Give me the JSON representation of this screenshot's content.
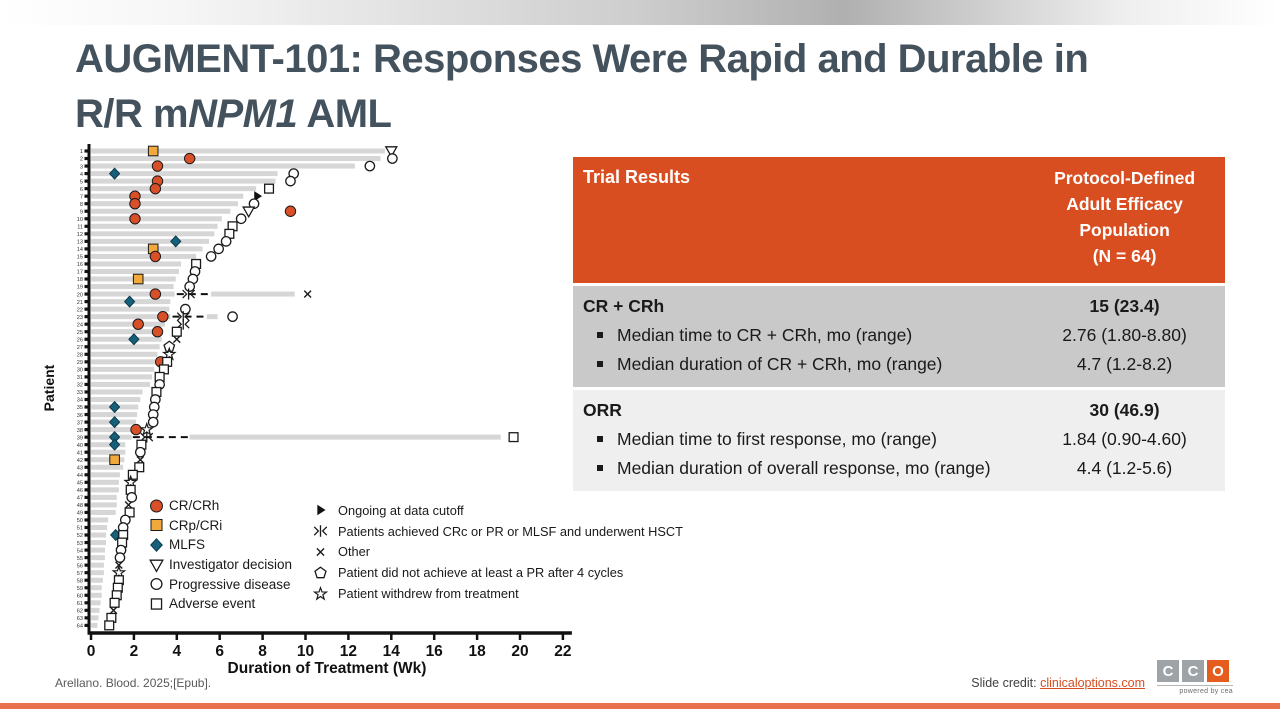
{
  "slide": {
    "title": {
      "line1": "AUGMENT-101: Responses Were Rapid and Durable in",
      "line2_prefix": "R/R m",
      "line2_italic": "NPM1",
      "line2_suffix": " AML"
    },
    "footer": {
      "citation": "Arellano. Blood. 2025;[Epub].",
      "credit_label": "Slide credit: ",
      "credit_link": "clinicaloptions.com",
      "logo_letters": [
        "C",
        "C",
        "O"
      ],
      "logo_tagline": "powered by cea"
    },
    "colors": {
      "title_text": "#44525E",
      "table_header_bg": "#D84E20",
      "table_row1_bg": "#C9C9C9",
      "table_row2_bg": "#EFEFEF",
      "link": "#D84E20",
      "bottom_bar": "#E8724E",
      "logo_gray": "#9EA3A8",
      "logo_orange": "#E55C1F"
    }
  },
  "table": {
    "header": {
      "col1": "Trial Results",
      "col2_lines": [
        "Protocol-Defined",
        "Adult Efficacy",
        "Population",
        "(N = 64)"
      ]
    },
    "rows": [
      {
        "title": "CR + CRh",
        "bullets": [
          "Median time to CR + CRh, mo (range)",
          "Median duration of CR + CRh, mo (range)"
        ],
        "value_bold": "15 (23.4)",
        "values": [
          "2.76 (1.80-8.80)",
          "4.7 (1.2-8.2)"
        ]
      },
      {
        "title": "ORR",
        "bullets": [
          "Median time to first response, mo (range)",
          "Median duration of overall response, mo (range)"
        ],
        "value_bold": "30 (46.9)",
        "values": [
          "1.84 (0.90-4.60)",
          "4.4 (1.2-5.6)"
        ]
      }
    ]
  },
  "legend": {
    "left": [
      {
        "sym": "crc",
        "label": "CR/CRh"
      },
      {
        "sym": "cri",
        "label": "CRp/CRi"
      },
      {
        "sym": "mlfs",
        "label": "MLFS"
      },
      {
        "sym": "inv",
        "label": "Investigator decision"
      },
      {
        "sym": "pd",
        "label": "Progressive disease"
      },
      {
        "sym": "ae",
        "label": "Adverse event"
      }
    ],
    "right": [
      {
        "sym": "ong",
        "label": "Ongoing at data cutoff"
      },
      {
        "sym": "hsct",
        "label": "Patients achieved CRc or PR or MLSF and underwent HSCT"
      },
      {
        "sym": "oth",
        "label": "Other"
      },
      {
        "sym": "pent",
        "label": "Patient did not achieve at least a PR after 4 cycles"
      },
      {
        "sym": "wd",
        "label": "Patient withdrew from treatment"
      }
    ]
  },
  "chart_data": {
    "type": "bar",
    "subtype": "swimmer-plot",
    "title": "",
    "xlabel": "Duration of Treatment (Wk)",
    "ylabel": "Patient",
    "xlim": [
      0,
      22
    ],
    "x_ticks": [
      0,
      2,
      4,
      6,
      8,
      10,
      12,
      14,
      16,
      18,
      20,
      22
    ],
    "grid": false,
    "colors": {
      "bar": "#D6D6D6",
      "crc": "#D94F27",
      "cri": "#F2A93B",
      "mlfs": "#16607A",
      "stroke": "#1a1a1a"
    },
    "marker_types": {
      "crc": "CR/CRh",
      "cri": "CRp/CRi",
      "mlfs": "MLFS",
      "inv": "Investigator decision",
      "pd": "Progressive disease",
      "ae": "Adverse event",
      "ong": "Ongoing at data cutoff",
      "hsct": "HSCT",
      "oth": "Other",
      "pent": "No PR after 4 cycles",
      "wd": "Withdrew"
    },
    "patients": [
      {
        "id": 1,
        "wk": 13.7,
        "m": [
          [
            "cri",
            2.9
          ],
          [
            "inv",
            14.0
          ]
        ]
      },
      {
        "id": 2,
        "wk": 13.5,
        "m": [
          [
            "crc",
            4.6
          ],
          [
            "pd",
            14.05
          ]
        ]
      },
      {
        "id": 3,
        "wk": 12.3,
        "m": [
          [
            "crc",
            3.1
          ],
          [
            "pd",
            13.0
          ]
        ]
      },
      {
        "id": 4,
        "wk": 8.7,
        "m": [
          [
            "mlfs",
            1.1
          ],
          [
            "pd",
            9.45
          ]
        ]
      },
      {
        "id": 5,
        "wk": 8.6,
        "m": [
          [
            "crc",
            3.1
          ],
          [
            "pd",
            9.3
          ]
        ]
      },
      {
        "id": 6,
        "wk": 7.7,
        "m": [
          [
            "crc",
            3.0
          ],
          [
            "ae",
            8.3
          ]
        ]
      },
      {
        "id": 7,
        "wk": 7.1,
        "m": [
          [
            "crc",
            2.05
          ],
          [
            "ong",
            7.75
          ]
        ]
      },
      {
        "id": 8,
        "wk": 6.85,
        "m": [
          [
            "crc",
            2.05
          ],
          [
            "pd",
            7.6
          ]
        ]
      },
      {
        "id": 9,
        "wk": 6.5,
        "m": [
          [
            "inv",
            7.35
          ],
          [
            "crc",
            9.3
          ]
        ]
      },
      {
        "id": 10,
        "wk": 6.1,
        "m": [
          [
            "crc",
            2.05
          ],
          [
            "pd",
            7.0
          ]
        ]
      },
      {
        "id": 11,
        "wk": 5.9,
        "m": [
          [
            "ae",
            6.6
          ]
        ]
      },
      {
        "id": 12,
        "wk": 5.75,
        "m": [
          [
            "ae",
            6.45
          ]
        ]
      },
      {
        "id": 13,
        "wk": 5.5,
        "m": [
          [
            "mlfs",
            3.95
          ],
          [
            "pd",
            6.3
          ]
        ]
      },
      {
        "id": 14,
        "wk": 5.2,
        "m": [
          [
            "cri",
            2.9
          ],
          [
            "pd",
            5.95
          ]
        ]
      },
      {
        "id": 15,
        "wk": 4.9,
        "m": [
          [
            "crc",
            3.0
          ],
          [
            "pd",
            5.6
          ]
        ]
      },
      {
        "id": 16,
        "wk": 4.2,
        "m": [
          [
            "ae",
            4.9
          ]
        ]
      },
      {
        "id": 17,
        "wk": 4.1,
        "m": [
          [
            "pd",
            4.85
          ]
        ]
      },
      {
        "id": 18,
        "wk": 3.95,
        "m": [
          [
            "cri",
            2.2
          ],
          [
            "pd",
            4.75
          ]
        ]
      },
      {
        "id": 19,
        "wk": 3.85,
        "m": [
          [
            "pd",
            4.6
          ]
        ]
      },
      {
        "id": 20,
        "wk": 3.9,
        "m": [
          [
            "crc",
            3.0
          ],
          [
            "hsct",
            4.55
          ],
          [
            "oth",
            10.1
          ]
        ],
        "dash": [
          4.0,
          5.6
        ],
        "bar2": [
          5.6,
          9.5
        ]
      },
      {
        "id": 21,
        "wk": 3.7,
        "m": [
          [
            "mlfs",
            1.8
          ]
        ]
      },
      {
        "id": 22,
        "wk": 3.65,
        "m": [
          [
            "pd",
            4.4
          ]
        ]
      },
      {
        "id": 23,
        "wk": 3.7,
        "m": [
          [
            "crc",
            3.35
          ],
          [
            "hsct",
            4.3
          ],
          [
            "pd",
            6.6
          ]
        ],
        "dash": [
          3.8,
          5.35
        ],
        "bar2": [
          5.4,
          5.9
        ]
      },
      {
        "id": 24,
        "wk": 3.45,
        "m": [
          [
            "crc",
            2.2
          ],
          [
            "hsct",
            4.3
          ]
        ]
      },
      {
        "id": 25,
        "wk": 3.35,
        "m": [
          [
            "crc",
            3.1
          ],
          [
            "ae",
            4.0
          ]
        ]
      },
      {
        "id": 26,
        "wk": 3.3,
        "m": [
          [
            "mlfs",
            2.0
          ],
          [
            "oth",
            4.0
          ]
        ]
      },
      {
        "id": 27,
        "wk": 3.2,
        "m": [
          [
            "pent",
            3.65
          ]
        ]
      },
      {
        "id": 28,
        "wk": 3.1,
        "m": [
          [
            "wd",
            3.65
          ]
        ]
      },
      {
        "id": 29,
        "wk": 3.0,
        "m": [
          [
            "crc",
            3.25
          ],
          [
            "ae",
            3.55
          ]
        ]
      },
      {
        "id": 30,
        "wk": 2.95,
        "m": [
          [
            "ae",
            3.4
          ]
        ]
      },
      {
        "id": 31,
        "wk": 2.85,
        "m": [
          [
            "ae",
            3.2
          ]
        ]
      },
      {
        "id": 32,
        "wk": 2.75,
        "m": [
          [
            "pd",
            3.2
          ]
        ]
      },
      {
        "id": 33,
        "wk": 2.4,
        "m": [
          [
            "ae",
            3.05
          ]
        ]
      },
      {
        "id": 34,
        "wk": 2.3,
        "m": [
          [
            "pd",
            3.0
          ]
        ]
      },
      {
        "id": 35,
        "wk": 2.2,
        "m": [
          [
            "mlfs",
            1.1
          ],
          [
            "pd",
            2.95
          ]
        ]
      },
      {
        "id": 36,
        "wk": 2.15,
        "m": [
          [
            "pd",
            2.9
          ]
        ]
      },
      {
        "id": 37,
        "wk": 2.1,
        "m": [
          [
            "mlfs",
            1.1
          ],
          [
            "pd",
            2.9
          ]
        ]
      },
      {
        "id": 38,
        "wk": 2.0,
        "m": [
          [
            "crc",
            2.1
          ],
          [
            "wd",
            2.6
          ]
        ]
      },
      {
        "id": 39,
        "wk": 1.9,
        "m": [
          [
            "mlfs",
            1.1
          ],
          [
            "hsct",
            2.6
          ],
          [
            "ae",
            19.7
          ]
        ],
        "dash": [
          1.95,
          4.55
        ],
        "bar2": [
          4.6,
          19.1
        ]
      },
      {
        "id": 40,
        "wk": 1.6,
        "m": [
          [
            "mlfs",
            1.1
          ],
          [
            "ae",
            2.35
          ]
        ]
      },
      {
        "id": 41,
        "wk": 1.6,
        "m": [
          [
            "pd",
            2.3
          ]
        ]
      },
      {
        "id": 42,
        "wk": 1.55,
        "m": [
          [
            "cri",
            1.1
          ],
          [
            "oth",
            2.3
          ]
        ]
      },
      {
        "id": 43,
        "wk": 1.5,
        "m": [
          [
            "ae",
            2.25
          ]
        ]
      },
      {
        "id": 44,
        "wk": 1.35,
        "m": [
          [
            "ae",
            1.95
          ]
        ]
      },
      {
        "id": 45,
        "wk": 1.3,
        "m": [
          [
            "wd",
            1.85
          ]
        ]
      },
      {
        "id": 46,
        "wk": 1.3,
        "m": [
          [
            "ae",
            1.85
          ]
        ]
      },
      {
        "id": 47,
        "wk": 1.2,
        "m": [
          [
            "pd",
            1.9
          ]
        ]
      },
      {
        "id": 48,
        "wk": 1.2,
        "m": [
          [
            "oth",
            1.75
          ]
        ]
      },
      {
        "id": 49,
        "wk": 1.15,
        "m": [
          [
            "ae",
            1.8
          ]
        ]
      },
      {
        "id": 50,
        "wk": 0.8,
        "m": [
          [
            "pd",
            1.6
          ]
        ]
      },
      {
        "id": 51,
        "wk": 0.75,
        "m": [
          [
            "pd",
            1.5
          ]
        ]
      },
      {
        "id": 52,
        "wk": 0.7,
        "m": [
          [
            "mlfs",
            1.15
          ],
          [
            "ae",
            1.5
          ]
        ]
      },
      {
        "id": 53,
        "wk": 0.7,
        "m": [
          [
            "ae",
            1.45
          ]
        ]
      },
      {
        "id": 54,
        "wk": 0.65,
        "m": [
          [
            "pd",
            1.4
          ]
        ]
      },
      {
        "id": 55,
        "wk": 0.65,
        "m": [
          [
            "pd",
            1.35
          ]
        ]
      },
      {
        "id": 56,
        "wk": 0.6,
        "m": [
          [
            "oth",
            1.3
          ]
        ]
      },
      {
        "id": 57,
        "wk": 0.6,
        "m": [
          [
            "wd",
            1.3
          ]
        ]
      },
      {
        "id": 58,
        "wk": 0.55,
        "m": [
          [
            "ae",
            1.3
          ]
        ]
      },
      {
        "id": 59,
        "wk": 0.5,
        "m": [
          [
            "ae",
            1.25
          ]
        ]
      },
      {
        "id": 60,
        "wk": 0.5,
        "m": [
          [
            "ae",
            1.2
          ]
        ]
      },
      {
        "id": 61,
        "wk": 0.45,
        "m": [
          [
            "ae",
            1.1
          ]
        ]
      },
      {
        "id": 62,
        "wk": 0.4,
        "m": [
          [
            "oth",
            1.05
          ]
        ]
      },
      {
        "id": 63,
        "wk": 0.35,
        "m": [
          [
            "ae",
            0.95
          ]
        ]
      },
      {
        "id": 64,
        "wk": 0.3,
        "m": [
          [
            "ae",
            0.85
          ]
        ]
      }
    ]
  }
}
